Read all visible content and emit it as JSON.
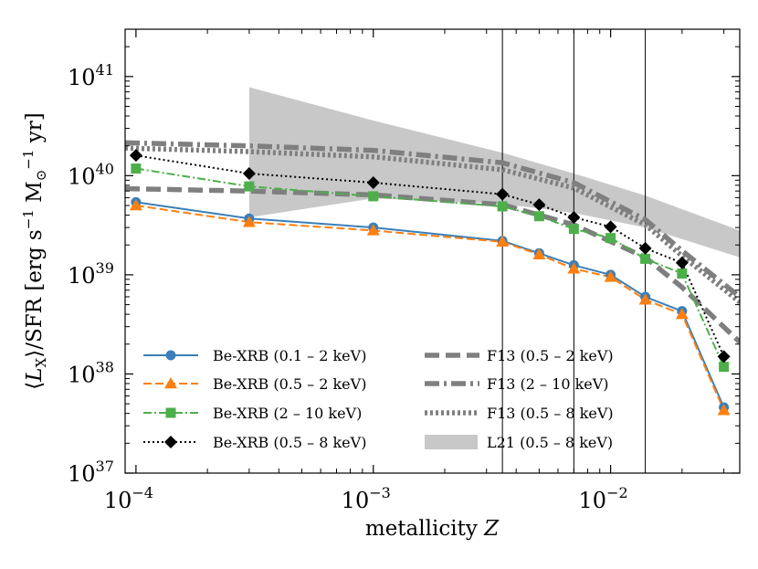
{
  "chart_data": {
    "type": "line",
    "xscale": "log",
    "yscale": "log",
    "xlim": [
      9e-05,
      0.035
    ],
    "ylim": [
      1e+37,
      3e+41
    ],
    "xlabel": "metallicity Z",
    "ylabel": "⟨L_X⟩/SFR [erg s^-1 M_⊙^-1 yr]",
    "x_ticks": [
      {
        "value": 0.0001,
        "base": "10",
        "exp": "−4"
      },
      {
        "value": 0.001,
        "base": "10",
        "exp": "−3"
      },
      {
        "value": 0.01,
        "base": "10",
        "exp": "−2"
      }
    ],
    "y_ticks": [
      {
        "value": 1e+37,
        "base": "10",
        "exp": "37"
      },
      {
        "value": 1e+38,
        "base": "10",
        "exp": "38"
      },
      {
        "value": 1e+39,
        "base": "10",
        "exp": "39"
      },
      {
        "value": 1e+40,
        "base": "10",
        "exp": "40"
      },
      {
        "value": 1e+41,
        "base": "10",
        "exp": "41"
      }
    ],
    "vlines": [
      0.0035,
      0.007,
      0.014
    ],
    "series": [
      {
        "name": "Be-XRB (0.1 – 2 keV)",
        "kind": "line",
        "color": "#3a7fb9",
        "dash": "",
        "marker": "circle",
        "x": [
          0.0001,
          0.0003,
          0.001,
          0.0035,
          0.005,
          0.007,
          0.01,
          0.014,
          0.02,
          0.03
        ],
        "y": [
          5.4e+39,
          3.7e+39,
          3e+39,
          2.2e+39,
          1.65e+39,
          1.25e+39,
          1e+39,
          6e+38,
          4.3e+38,
          4.6e+37
        ]
      },
      {
        "name": "Be-XRB (0.5 – 2 keV)",
        "kind": "line",
        "color": "#ff7f0e",
        "dash": "9,4",
        "marker": "triangle",
        "x": [
          0.0001,
          0.0003,
          0.001,
          0.0035,
          0.005,
          0.007,
          0.01,
          0.014,
          0.02,
          0.03
        ],
        "y": [
          5e+39,
          3.4e+39,
          2.8e+39,
          2.15e+39,
          1.6e+39,
          1.15e+39,
          9.5e+38,
          5.6e+38,
          4e+38,
          4.3e+37
        ]
      },
      {
        "name": "Be-XRB (2 – 10 keV)",
        "kind": "line",
        "color": "#4daf4a",
        "dash": "9,3,2,3",
        "marker": "square",
        "x": [
          0.0001,
          0.0003,
          0.001,
          0.0035,
          0.005,
          0.007,
          0.01,
          0.014,
          0.02,
          0.03
        ],
        "y": [
          1.18e+40,
          7.8e+39,
          6.2e+39,
          4.9e+39,
          3.9e+39,
          2.9e+39,
          2.35e+39,
          1.45e+39,
          1.03e+39,
          1.18e+38
        ]
      },
      {
        "name": "Be-XRB (0.5 – 8 keV)",
        "kind": "line",
        "color": "#000000",
        "dash": "2,3",
        "marker": "diamond",
        "x": [
          0.0001,
          0.0003,
          0.001,
          0.0035,
          0.005,
          0.007,
          0.01,
          0.014,
          0.02,
          0.03
        ],
        "y": [
          1.6e+40,
          1.05e+40,
          8.5e+39,
          6.5e+39,
          5.1e+39,
          3.8e+39,
          3.05e+39,
          1.85e+39,
          1.32e+39,
          1.5e+38
        ]
      },
      {
        "name": "F13 (0.5 – 2 keV)",
        "kind": "line",
        "color": "#7f7f7f",
        "dash": "16,7",
        "marker": "",
        "x": [
          9e-05,
          0.0003,
          0.001,
          0.0035,
          0.007,
          0.014,
          0.02,
          0.035
        ],
        "y": [
          7.4e+39,
          7e+39,
          6.4e+39,
          5.1e+39,
          3.2e+39,
          1.5e+39,
          7.5e+38,
          2.1e+38
        ]
      },
      {
        "name": "F13 (2 – 10 keV)",
        "kind": "line",
        "color": "#7f7f7f",
        "dash": "16,5,3,5",
        "marker": "",
        "x": [
          9e-05,
          0.0003,
          0.001,
          0.0035,
          0.007,
          0.014,
          0.02,
          0.035
        ],
        "y": [
          2.15e+40,
          2e+40,
          1.8e+40,
          1.35e+40,
          8.5e+39,
          3.6e+39,
          1.75e+39,
          6e+38
        ]
      },
      {
        "name": "F13 (0.5 – 8 keV)",
        "kind": "line",
        "color": "#7f7f7f",
        "dash": "3,3",
        "marker": "",
        "x": [
          9e-05,
          0.0003,
          0.001,
          0.0035,
          0.007,
          0.014,
          0.02,
          0.035
        ],
        "y": [
          1.9e+40,
          1.75e+40,
          1.55e+40,
          1.15e+40,
          7.5e+39,
          3.2e+39,
          1.55e+39,
          5.3e+38
        ]
      },
      {
        "name": "L21 (0.5 – 8 keV)",
        "kind": "band",
        "color": "#c8c8c8",
        "x": [
          0.0003,
          0.001,
          0.0035,
          0.007,
          0.014,
          0.035
        ],
        "y_upper": [
          7.8e+40,
          3.6e+40,
          1.7e+40,
          1.05e+40,
          6.3e+39,
          2.8e+39
        ],
        "y_lower": [
          3.8e+39,
          5.9e+39,
          5.2e+39,
          4.2e+39,
          3e+39,
          1.5e+39
        ]
      }
    ],
    "legend": {
      "placement": "lower-left, two columns",
      "col1": [
        "Be-XRB (0.1 – 2 keV)",
        "Be-XRB (0.5 – 2 keV)",
        "Be-XRB (2 – 10 keV)",
        "Be-XRB (0.5 – 8 keV)"
      ],
      "col2": [
        "F13 (0.5 – 2 keV)",
        "F13 (2 – 10 keV)",
        "F13 (0.5 – 8 keV)",
        "L21 (0.5 – 8 keV)"
      ]
    }
  }
}
